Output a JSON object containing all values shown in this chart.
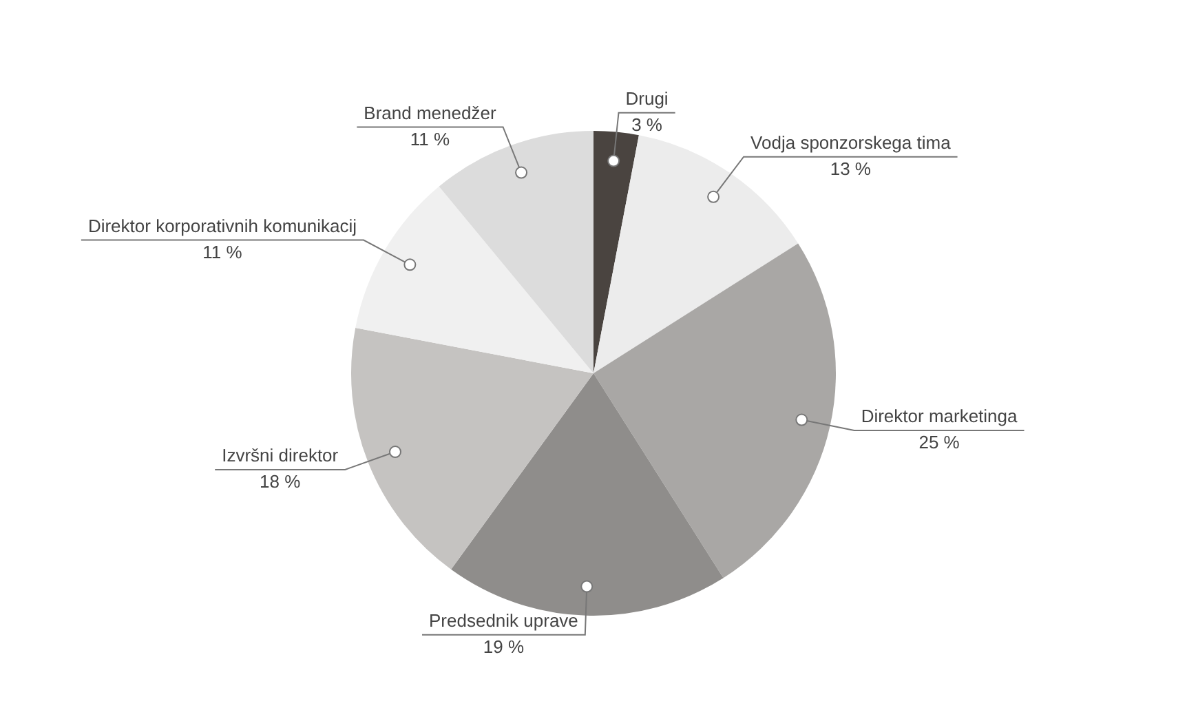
{
  "chart_data": {
    "type": "pie",
    "categories": [
      "Drugi",
      "Vodja sponzorskega tima",
      "Direktor marketinga",
      "Predsednik uprave",
      "Izvršni direktor",
      "Direktor korporativnih komunikacij",
      "Brand menedžer"
    ],
    "values": [
      3,
      13,
      25,
      19,
      18,
      11,
      11
    ],
    "value_labels": [
      "3 %",
      "13 %",
      "25 %",
      "19 %",
      "18 %",
      "11 %",
      "11 %"
    ],
    "colors": [
      "#4a4440",
      "#ececec",
      "#a9a7a5",
      "#8f8d8b",
      "#c5c3c1",
      "#f0f0f0",
      "#dcdcdc"
    ],
    "legend": false
  }
}
